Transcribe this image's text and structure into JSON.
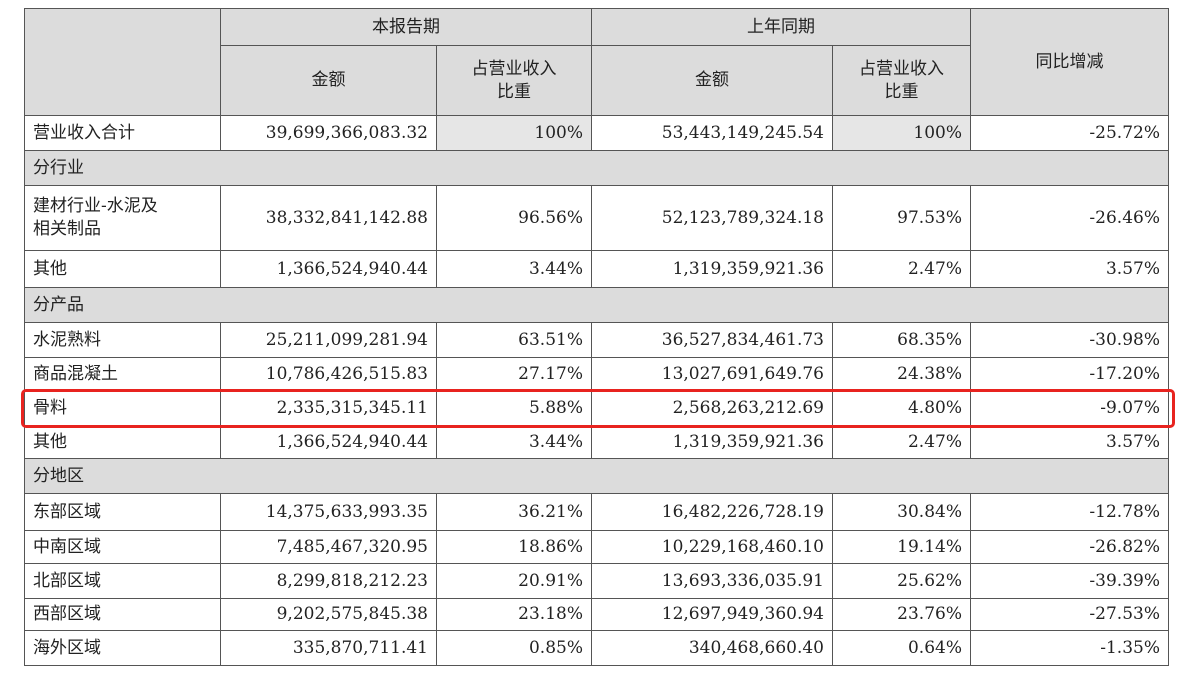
{
  "table": {
    "header": {
      "group_current": "本报告期",
      "group_previous": "上年同期",
      "change": "同比增减",
      "amount_current": "金额",
      "ratio_current": "占营业收入\n比重",
      "amount_previous": "金额",
      "ratio_previous": "占营业收入\n比重"
    },
    "rows": [
      [
        "营业收入合计",
        "39,699,366,083.32",
        "100%",
        "53,443,149,245.54",
        "100%",
        "-25.72%"
      ],
      [
        "分行业"
      ],
      [
        "建材行业-水泥及\n相关制品",
        "38,332,841,142.88",
        "96.56%",
        "52,123,789,324.18",
        "97.53%",
        "-26.46%"
      ],
      [
        "其他",
        "1,366,524,940.44",
        "3.44%",
        "1,319,359,921.36",
        "2.47%",
        "3.57%"
      ],
      [
        "分产品"
      ],
      [
        "水泥熟料",
        "25,211,099,281.94",
        "63.51%",
        "36,527,834,461.73",
        "68.35%",
        "-30.98%"
      ],
      [
        "商品混凝土",
        "10,786,426,515.83",
        "27.17%",
        "13,027,691,649.76",
        "24.38%",
        "-17.20%"
      ],
      [
        "骨料",
        "2,335,315,345.11",
        "5.88%",
        "2,568,263,212.69",
        "4.80%",
        "-9.07%"
      ],
      [
        "其他",
        "1,366,524,940.44",
        "3.44%",
        "1,319,359,921.36",
        "2.47%",
        "3.57%"
      ],
      [
        "分地区"
      ],
      [
        "东部区域",
        "14,375,633,993.35",
        "36.21%",
        "16,482,226,728.19",
        "30.84%",
        "-12.78%"
      ],
      [
        "中南区域",
        "7,485,467,320.95",
        "18.86%",
        "10,229,168,460.10",
        "19.14%",
        "-26.82%"
      ],
      [
        "北部区域",
        "8,299,818,212.23",
        "20.91%",
        "13,693,336,035.91",
        "25.62%",
        "-39.39%"
      ],
      [
        "西部区域",
        "9,202,575,845.38",
        "23.18%",
        "12,697,949,360.94",
        "23.76%",
        "-27.53%"
      ],
      [
        "海外区域",
        "335,870,711.41",
        "0.85%",
        "340,468,660.40",
        "0.64%",
        "-1.35%"
      ]
    ]
  }
}
